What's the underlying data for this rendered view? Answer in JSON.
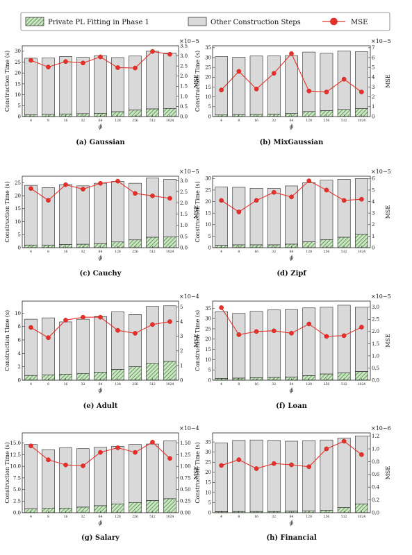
{
  "legend": {
    "bar1": "Private PL Fitting in Phase 1",
    "bar2": "Other Construction Steps",
    "line": "MSE"
  },
  "colors": {
    "phase1_fill": "#c8e6c0",
    "phase1_hatch": "#3a6b35",
    "other_fill": "#d9d9d9",
    "bar_edge": "#222222",
    "mse_line": "#e8302a"
  },
  "chart_data": [
    {
      "type": "bar",
      "caption": "(a) Gaussian",
      "categories": [
        "4",
        "8",
        "16",
        "32",
        "64",
        "128",
        "256",
        "512",
        "1024"
      ],
      "xlabel": "ϕ",
      "ylabel": "Construction Time (s)",
      "ylabel2": "MSE",
      "exponent": "×10−5",
      "ylim": [
        0,
        32.5
      ],
      "yticks": [
        0,
        5,
        10,
        15,
        20,
        25,
        30
      ],
      "y2lim": [
        0,
        3.5
      ],
      "y2ticks": [
        0,
        0.5,
        1.0,
        1.5,
        2.0,
        2.5,
        3.0,
        3.5
      ],
      "series": [
        {
          "name": "Private PL Fitting in Phase 1",
          "values": [
            0.8,
            1.0,
            1.2,
            1.3,
            1.5,
            2.2,
            3.0,
            3.5,
            3.7
          ]
        },
        {
          "name": "Other Construction Steps",
          "values": [
            26.0,
            25.9,
            26.4,
            25.9,
            26.4,
            24.9,
            24.8,
            26.5,
            25.5
          ]
        },
        {
          "name": "MSE",
          "values": [
            2.78,
            2.45,
            2.72,
            2.65,
            2.95,
            2.42,
            2.4,
            3.22,
            3.08
          ]
        }
      ]
    },
    {
      "type": "bar",
      "caption": "(b) MixGaussian",
      "categories": [
        "4",
        "8",
        "16",
        "32",
        "64",
        "128",
        "256",
        "512",
        "1024"
      ],
      "xlabel": "ϕ",
      "ylabel": "Construction Time (s)",
      "ylabel2": "MSE",
      "exponent": "×10−5",
      "ylim": [
        0,
        36
      ],
      "yticks": [
        0,
        5,
        10,
        15,
        20,
        25,
        30,
        35
      ],
      "y2lim": [
        0,
        7.2
      ],
      "y2ticks": [
        0,
        1,
        2,
        3,
        4,
        5,
        6,
        7
      ],
      "series": [
        {
          "name": "Private PL Fitting in Phase 1",
          "values": [
            0.8,
            1.0,
            1.1,
            1.2,
            1.5,
            2.5,
            3.0,
            3.6,
            4.0
          ]
        },
        {
          "name": "Other Construction Steps",
          "values": [
            29.7,
            29.2,
            29.7,
            29.7,
            29.5,
            30.3,
            29.2,
            29.8,
            29.0
          ]
        },
        {
          "name": "MSE",
          "values": [
            2.7,
            4.6,
            2.8,
            4.4,
            6.4,
            2.6,
            2.5,
            3.8,
            2.5
          ]
        }
      ]
    },
    {
      "type": "bar",
      "caption": "(c) Cauchy",
      "categories": [
        "4",
        "8",
        "16",
        "32",
        "64",
        "128",
        "256",
        "512",
        "1024"
      ],
      "xlabel": "ϕ",
      "ylabel": "Construction Time (s)",
      "ylabel2": "MSE",
      "exponent": "×10−5",
      "ylim": [
        0,
        27.5
      ],
      "yticks": [
        0,
        5,
        10,
        15,
        20,
        25
      ],
      "y2lim": [
        0,
        3.2
      ],
      "y2ticks": [
        0,
        0.5,
        1.0,
        1.5,
        2.0,
        2.5,
        3.0
      ],
      "series": [
        {
          "name": "Private PL Fitting in Phase 1",
          "values": [
            1.0,
            1.0,
            1.2,
            1.3,
            1.6,
            2.2,
            3.0,
            4.0,
            4.2
          ]
        },
        {
          "name": "Other Construction Steps",
          "values": [
            23.0,
            22.1,
            23.1,
            22.5,
            23.2,
            23.3,
            21.8,
            22.8,
            22.1
          ]
        },
        {
          "name": "MSE",
          "values": [
            2.65,
            2.12,
            2.82,
            2.62,
            2.88,
            2.98,
            2.43,
            2.32,
            2.21
          ]
        }
      ]
    },
    {
      "type": "bar",
      "caption": "(d) Zipf",
      "categories": [
        "4",
        "8",
        "16",
        "32",
        "64",
        "128",
        "256",
        "512",
        "1024"
      ],
      "xlabel": "ϕ",
      "ylabel": "Construction Time (s)",
      "ylabel2": "MSE",
      "exponent": "×10−5",
      "ylim": [
        0,
        31
      ],
      "yticks": [
        0,
        5,
        10,
        15,
        20,
        25,
        30
      ],
      "y2lim": [
        0,
        6.2
      ],
      "y2ticks": [
        0,
        1,
        2,
        3,
        4,
        5,
        6
      ],
      "series": [
        {
          "name": "Private PL Fitting in Phase 1",
          "values": [
            1.0,
            1.2,
            1.2,
            1.2,
            1.5,
            2.5,
            3.5,
            4.5,
            5.8
          ]
        },
        {
          "name": "Other Construction Steps",
          "values": [
            25.3,
            25.0,
            24.6,
            24.6,
            25.3,
            25.7,
            25.8,
            25.2,
            24.2
          ]
        },
        {
          "name": "MSE",
          "values": [
            4.1,
            3.1,
            4.1,
            4.8,
            4.4,
            5.8,
            5.0,
            4.1,
            4.2
          ]
        }
      ]
    },
    {
      "type": "bar",
      "caption": "(e) Adult",
      "categories": [
        "4",
        "8",
        "16",
        "32",
        "64",
        "128",
        "256",
        "512",
        "1024"
      ],
      "xlabel": "ϕ",
      "ylabel": "Construction Time (s)",
      "ylabel2": "MSE",
      "exponent": "×10−4",
      "ylim": [
        0,
        11.8
      ],
      "yticks": [
        0,
        2,
        4,
        6,
        8,
        10
      ],
      "y2lim": [
        0,
        5.4
      ],
      "y2ticks": [
        0,
        1,
        2,
        3,
        4,
        5
      ],
      "series": [
        {
          "name": "Private PL Fitting in Phase 1",
          "values": [
            0.7,
            0.8,
            0.9,
            1.0,
            1.2,
            1.6,
            2.0,
            2.5,
            2.8
          ]
        },
        {
          "name": "Other Construction Steps",
          "values": [
            8.4,
            8.5,
            7.8,
            8.1,
            8.3,
            8.6,
            7.8,
            8.5,
            8.3
          ]
        },
        {
          "name": "MSE",
          "values": [
            3.6,
            2.9,
            4.1,
            4.3,
            4.3,
            3.4,
            3.2,
            3.8,
            4.0
          ]
        }
      ]
    },
    {
      "type": "bar",
      "caption": "(f) Loan",
      "categories": [
        "4",
        "8",
        "16",
        "32",
        "64",
        "128",
        "256",
        "512",
        "1024"
      ],
      "xlabel": "ϕ",
      "ylabel": "Construction Time (s)",
      "ylabel2": "MSE",
      "exponent": "×10−5",
      "ylim": [
        0,
        38.5
      ],
      "yticks": [
        0,
        5,
        10,
        15,
        20,
        25,
        30,
        35
      ],
      "y2lim": [
        0,
        3.25
      ],
      "y2ticks": [
        0,
        0.5,
        1.0,
        1.5,
        2.0,
        2.5,
        3.0
      ],
      "series": [
        {
          "name": "Private PL Fitting in Phase 1",
          "values": [
            0.8,
            1.0,
            1.2,
            1.3,
            1.5,
            2.2,
            3.0,
            3.5,
            4.2
          ]
        },
        {
          "name": "Other Construction Steps",
          "values": [
            32.5,
            31.5,
            32.3,
            32.9,
            32.9,
            33.0,
            32.5,
            33.0,
            31.3
          ]
        },
        {
          "name": "MSE",
          "values": [
            2.98,
            1.87,
            2.0,
            2.03,
            1.93,
            2.31,
            1.8,
            1.83,
            2.18
          ]
        }
      ]
    },
    {
      "type": "bar",
      "caption": "(g) Salary",
      "categories": [
        "4",
        "8",
        "16",
        "32",
        "64",
        "128",
        "256",
        "512",
        "1024"
      ],
      "xlabel": "ϕ",
      "ylabel": "Construction Time (s)",
      "ylabel2": "MSE",
      "exponent": "×10−4",
      "ylim": [
        0,
        17.2
      ],
      "yticks": [
        0,
        2.5,
        5.0,
        7.5,
        10.0,
        12.5,
        15.0
      ],
      "y2lim": [
        0,
        1.72
      ],
      "y2ticks": [
        0,
        0.25,
        0.5,
        0.75,
        1.0,
        1.25,
        1.5
      ],
      "series": [
        {
          "name": "Private PL Fitting in Phase 1",
          "values": [
            0.8,
            1.0,
            1.0,
            1.2,
            1.5,
            1.9,
            2.2,
            2.6,
            3.0
          ]
        },
        {
          "name": "Other Construction Steps",
          "values": [
            13.9,
            12.6,
            13.0,
            12.6,
            12.6,
            12.4,
            12.5,
            12.2,
            12.5
          ]
        },
        {
          "name": "MSE",
          "values": [
            1.44,
            1.14,
            1.03,
            1.01,
            1.3,
            1.4,
            1.3,
            1.52,
            1.17
          ]
        }
      ]
    },
    {
      "type": "bar",
      "caption": "(h) Financial",
      "categories": [
        "4",
        "8",
        "16",
        "32",
        "64",
        "128",
        "256",
        "512",
        "1024"
      ],
      "xlabel": "ϕ",
      "ylabel": "Construction Time (s)",
      "ylabel2": "MSE",
      "exponent": "×10−6",
      "ylim": [
        0,
        39.5
      ],
      "yticks": [
        0,
        5,
        10,
        15,
        20,
        25,
        30,
        35
      ],
      "y2lim": [
        0,
        1.25
      ],
      "y2ticks": [
        0,
        0.2,
        0.4,
        0.6,
        0.8,
        1.0,
        1.2
      ],
      "series": [
        {
          "name": "Private PL Fitting in Phase 1",
          "values": [
            0.5,
            0.6,
            0.6,
            0.6,
            0.7,
            0.9,
            1.2,
            2.5,
            4.3
          ]
        },
        {
          "name": "Other Construction Steps",
          "values": [
            34.0,
            35.2,
            35.4,
            35.2,
            34.7,
            34.8,
            34.8,
            34.5,
            33.7
          ]
        },
        {
          "name": "MSE",
          "values": [
            0.74,
            0.83,
            0.69,
            0.77,
            0.75,
            0.72,
            1.0,
            1.12,
            0.91
          ]
        }
      ]
    }
  ]
}
